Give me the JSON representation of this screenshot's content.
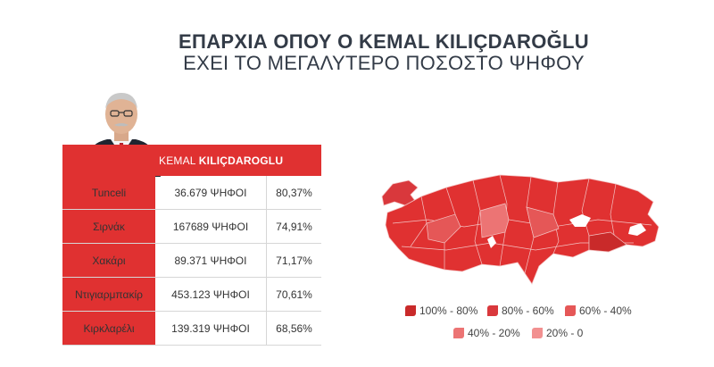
{
  "title": {
    "line1": "ΕΠΑΡΧΙΑ ΟΠΟΥ Ο KEMAL KILIÇDAROĞLU",
    "line2": "ΕΧΕΙ ΤΟ ΜΕΓΑΛΥΤΕΡΟ ΠΟΣΟΣΤΟ ΨΗΦΟΥ"
  },
  "candidate": {
    "first": "KEMAL",
    "last": "KILIÇDAROGLU"
  },
  "chart_data": {
    "type": "table",
    "rows": [
      {
        "province": "Tunceli",
        "votes": "36.679 ΨΗΦΟΙ",
        "percent": "80,37%"
      },
      {
        "province": "Σιρνάκ",
        "votes": "167689 ΨΗΦΟΙ",
        "percent": "74,91%"
      },
      {
        "province": "Χακάρι",
        "votes": "89.371 ΨΗΦΟΙ",
        "percent": "71,17%"
      },
      {
        "province": "Ντιγιαρμπακίρ",
        "votes": "453.123 ΨΗΦΟΙ",
        "percent": "70,61%"
      },
      {
        "province": "Κιρκλαρέλι",
        "votes": "139.319 ΨΗΦΟΙ",
        "percent": "68,56%"
      }
    ]
  },
  "legend": [
    {
      "label": "100% - 80%",
      "color": "#c92a2a"
    },
    {
      "label": "80% - 60%",
      "color": "#d9383c"
    },
    {
      "label": "60% - 40%",
      "color": "#e55757"
    },
    {
      "label": "40% - 20%",
      "color": "#ec7474"
    },
    {
      "label": "20% - 0",
      "color": "#f29090"
    }
  ],
  "colors": {
    "accent": "#e03131",
    "title": "#333b47"
  }
}
